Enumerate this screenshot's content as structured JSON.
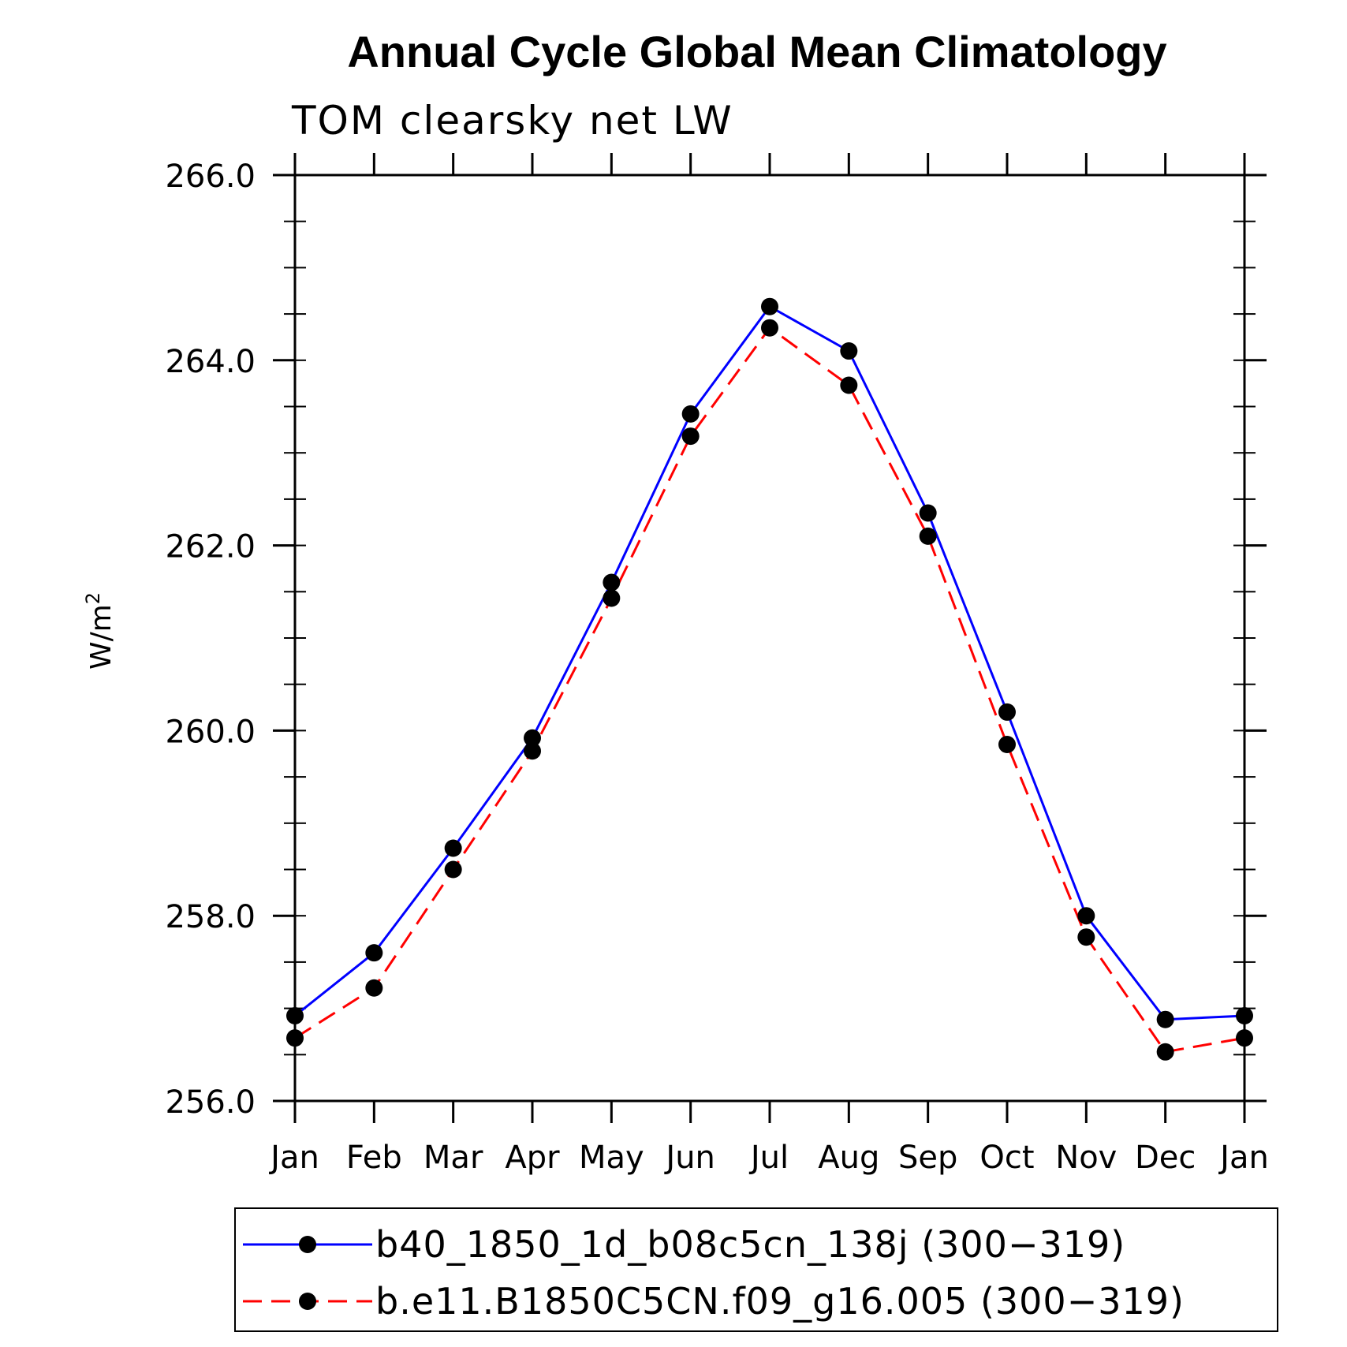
{
  "chart_data": {
    "type": "line",
    "title": "Annual Cycle Global Mean Climatology",
    "subtitle": "TOM clearsky net LW",
    "ylabel": "W/m",
    "ylabel_superscript": "2",
    "xlabel": "",
    "categories": [
      "Jan",
      "Feb",
      "Mar",
      "Apr",
      "May",
      "Jun",
      "Jul",
      "Aug",
      "Sep",
      "Oct",
      "Nov",
      "Dec",
      "Jan"
    ],
    "ylim": [
      256.0,
      266.0
    ],
    "yticks": [
      "256.0",
      "258.0",
      "260.0",
      "262.0",
      "264.0",
      "266.0"
    ],
    "grid": false,
    "legend_position": "bottom",
    "series": [
      {
        "name": "b40_1850_1d_b08c5cn_138j (300−319)",
        "color": "#0000ff",
        "dash": "solid",
        "values": [
          256.92,
          257.6,
          258.73,
          259.92,
          261.6,
          263.42,
          264.58,
          264.1,
          262.35,
          260.2,
          258.0,
          256.88,
          256.92
        ]
      },
      {
        "name": "b.e11.B1850C5CN.f09_g16.005 (300−319)",
        "color": "#ff0000",
        "dash": "dashed",
        "values": [
          256.68,
          257.22,
          258.5,
          259.78,
          261.43,
          263.18,
          264.35,
          263.73,
          262.1,
          259.85,
          257.77,
          256.53,
          256.68
        ]
      }
    ]
  }
}
